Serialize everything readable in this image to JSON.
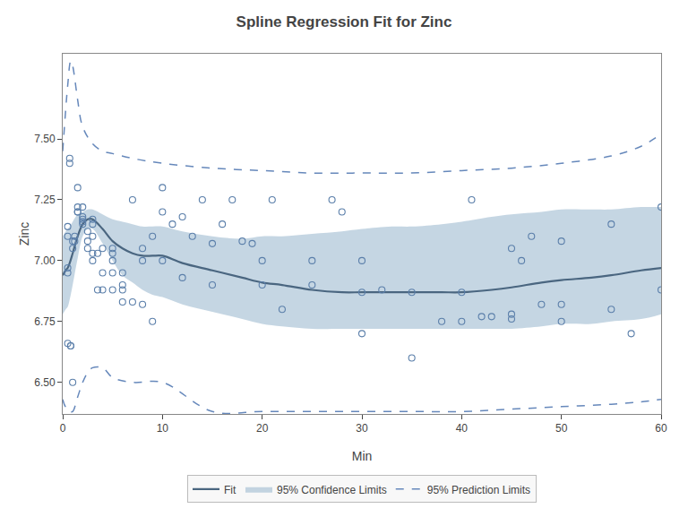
{
  "chart_data": {
    "type": "scatter",
    "title": "Spline Regression Fit for Zinc",
    "xlabel": "Min",
    "ylabel": "Zinc",
    "xlim": [
      0,
      60
    ],
    "ylim": [
      6.37,
      7.85
    ],
    "xticks": [
      0,
      10,
      20,
      30,
      40,
      50,
      60
    ],
    "yticks": [
      {
        "value": 6.5,
        "label": "6.50"
      },
      {
        "value": 6.75,
        "label": "6.75"
      },
      {
        "value": 7.0,
        "label": "7.00"
      },
      {
        "value": 7.25,
        "label": "7.25"
      },
      {
        "value": 7.5,
        "label": "7.50"
      }
    ],
    "grid": false,
    "legend": "bottom",
    "series": [
      {
        "type": "lines",
        "name": "95% Prediction Limits",
        "color": "#6688bb",
        "line_style": "dash",
        "x_upper": [
          0.0,
          0.3,
          0.5,
          0.8,
          1.0,
          1.2,
          1.5,
          2.0,
          3.0,
          4.0,
          5.0,
          7.0,
          10.0,
          15.0,
          20.0,
          25.0,
          30.0,
          35.0,
          40.0,
          45.0,
          50.0,
          55.0,
          58.0,
          60.0
        ],
        "upper": [
          7.45,
          7.62,
          7.72,
          7.82,
          7.8,
          7.75,
          7.66,
          7.55,
          7.48,
          7.45,
          7.44,
          7.42,
          7.4,
          7.38,
          7.37,
          7.36,
          7.36,
          7.36,
          7.37,
          7.38,
          7.4,
          7.43,
          7.47,
          7.52
        ],
        "x_lower": [
          0.0,
          0.3,
          0.5,
          0.8,
          1.0,
          1.5,
          2.0,
          2.5,
          3.0,
          4.0,
          5.0,
          7.0,
          10.0,
          15.0,
          20.0,
          25.0,
          30.0,
          35.0,
          40.0,
          45.0,
          50.0,
          55.0,
          58.0,
          60.0
        ],
        "lower": [
          6.43,
          6.4,
          6.4,
          6.38,
          6.38,
          6.44,
          6.5,
          6.54,
          6.56,
          6.56,
          6.52,
          6.5,
          6.5,
          6.38,
          6.38,
          6.38,
          6.38,
          6.38,
          6.38,
          6.39,
          6.4,
          6.41,
          6.42,
          6.43
        ]
      },
      {
        "type": "band",
        "name": "95% Confidence Limits",
        "color": "#96b4cc",
        "x_upper": [
          0.0,
          0.3,
          0.5,
          0.7,
          1.0,
          1.5,
          2.0,
          2.5,
          3.0,
          4.0,
          5.0,
          6.0,
          7.0,
          8.0,
          9.0,
          10.0,
          12.0,
          15.0,
          18.0,
          20.0,
          22.0,
          25.0,
          28.0,
          30.0,
          33.0,
          35.0,
          38.0,
          40.0,
          43.0,
          45.0,
          48.0,
          50.0,
          53.0,
          55.0,
          58.0,
          60.0
        ],
        "upper": [
          7.1,
          7.12,
          7.13,
          7.14,
          7.16,
          7.19,
          7.2,
          7.21,
          7.21,
          7.19,
          7.17,
          7.16,
          7.15,
          7.14,
          7.14,
          7.14,
          7.12,
          7.1,
          7.09,
          7.1,
          7.1,
          7.11,
          7.12,
          7.13,
          7.14,
          7.14,
          7.15,
          7.16,
          7.18,
          7.19,
          7.2,
          7.21,
          7.21,
          7.21,
          7.22,
          7.22
        ],
        "x_lower": [
          0.0,
          0.3,
          0.5,
          0.7,
          1.0,
          1.5,
          2.0,
          2.5,
          3.0,
          4.0,
          5.0,
          6.0,
          7.0,
          8.0,
          9.0,
          10.0,
          12.0,
          15.0,
          18.0,
          20.0,
          22.0,
          25.0,
          28.0,
          30.0,
          33.0,
          35.0,
          38.0,
          40.0,
          43.0,
          45.0,
          48.0,
          50.0,
          53.0,
          55.0,
          58.0,
          60.0
        ],
        "lower": [
          6.78,
          6.8,
          6.81,
          6.84,
          6.9,
          7.01,
          7.1,
          7.13,
          7.13,
          7.07,
          7.0,
          6.94,
          6.91,
          6.88,
          6.86,
          6.85,
          6.82,
          6.79,
          6.76,
          6.74,
          6.73,
          6.72,
          6.72,
          6.72,
          6.72,
          6.72,
          6.72,
          6.72,
          6.72,
          6.72,
          6.73,
          6.74,
          6.74,
          6.75,
          6.76,
          6.78
        ]
      },
      {
        "type": "line",
        "name": "Fit",
        "color": "#4a6680",
        "line_style": "solid",
        "x": [
          0.0,
          0.3,
          0.5,
          0.7,
          1.0,
          1.5,
          2.0,
          2.5,
          3.0,
          4.0,
          5.0,
          6.0,
          7.0,
          8.0,
          9.0,
          10.0,
          12.0,
          15.0,
          18.0,
          20.0,
          22.0,
          25.0,
          28.0,
          30.0,
          33.0,
          35.0,
          38.0,
          40.0,
          43.0,
          45.0,
          48.0,
          50.0,
          53.0,
          55.0,
          58.0,
          60.0
        ],
        "values": [
          6.94,
          6.96,
          6.97,
          6.99,
          7.03,
          7.1,
          7.15,
          7.17,
          7.17,
          7.13,
          7.08,
          7.05,
          7.03,
          7.02,
          7.02,
          7.02,
          6.99,
          6.96,
          6.93,
          6.91,
          6.9,
          6.88,
          6.87,
          6.87,
          6.87,
          6.87,
          6.87,
          6.87,
          6.88,
          6.89,
          6.91,
          6.92,
          6.93,
          6.94,
          6.96,
          6.97
        ]
      },
      {
        "type": "scatter",
        "color": "#5b7faa",
        "marker": "circle-open",
        "x": [
          0.5,
          0.5,
          0.5,
          0.5,
          0.5,
          0.7,
          0.7,
          0.8,
          0.8,
          1.0,
          1.0,
          1.0,
          1.2,
          1.2,
          1.5,
          1.5,
          1.5,
          1.5,
          2.0,
          2.0,
          2.0,
          2.0,
          2.0,
          2.5,
          2.5,
          2.5,
          3.0,
          3.0,
          3.0,
          3.0,
          3.0,
          3.5,
          3.5,
          4.0,
          4.0,
          4.0,
          5.0,
          5.0,
          5.0,
          5.0,
          5.0,
          6.0,
          6.0,
          6.0,
          6.0,
          7.0,
          7.0,
          8.0,
          8.0,
          8.0,
          9.0,
          9.0,
          10.0,
          10.0,
          10.0,
          11.0,
          12.0,
          12.0,
          13.0,
          14.0,
          15.0,
          15.0,
          16.0,
          17.0,
          18.0,
          19.0,
          20.0,
          20.0,
          21.0,
          22.0,
          25.0,
          25.0,
          27.0,
          28.0,
          30.0,
          30.0,
          30.0,
          32.0,
          35.0,
          35.0,
          38.0,
          40.0,
          40.0,
          41.0,
          42.0,
          43.0,
          45.0,
          45.0,
          45.0,
          46.0,
          47.0,
          48.0,
          50.0,
          50.0,
          50.0,
          55.0,
          55.0,
          57.0,
          60.0,
          60.0
        ],
        "values": [
          6.95,
          6.97,
          7.1,
          7.14,
          6.66,
          7.4,
          7.42,
          6.65,
          6.65,
          7.05,
          7.08,
          6.5,
          7.08,
          7.1,
          7.2,
          7.22,
          7.2,
          7.3,
          7.17,
          7.18,
          7.15,
          7.16,
          7.22,
          7.05,
          7.12,
          7.08,
          7.15,
          7.17,
          7.03,
          7.1,
          7.0,
          7.03,
          6.88,
          7.05,
          6.95,
          6.88,
          7.05,
          7.0,
          6.95,
          6.88,
          7.03,
          6.9,
          6.95,
          6.88,
          6.83,
          7.25,
          6.83,
          7.05,
          7.0,
          6.82,
          7.1,
          6.75,
          7.3,
          7.0,
          7.2,
          7.15,
          6.93,
          7.18,
          7.1,
          7.25,
          7.07,
          6.9,
          7.15,
          7.25,
          7.08,
          7.07,
          6.9,
          7.0,
          7.25,
          6.8,
          7.0,
          6.9,
          7.25,
          7.2,
          7.0,
          6.87,
          6.7,
          6.88,
          6.87,
          6.6,
          6.75,
          6.75,
          6.87,
          7.25,
          6.77,
          6.77,
          7.05,
          6.78,
          6.76,
          7.0,
          7.1,
          6.82,
          6.82,
          7.08,
          6.75,
          7.15,
          6.8,
          6.7,
          7.22,
          6.88
        ]
      }
    ]
  }
}
